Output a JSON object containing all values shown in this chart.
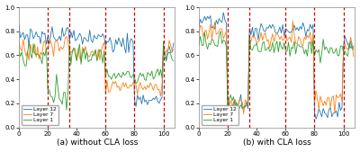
{
  "title_left": "(a) without CLA loss",
  "title_right": "(b) with CLA loss",
  "xlim": [
    0,
    108
  ],
  "ylim": [
    0.0,
    1.0
  ],
  "yticks": [
    0.0,
    0.2,
    0.4,
    0.6,
    0.8,
    1.0
  ],
  "xticks": [
    0,
    20,
    40,
    60,
    80,
    100
  ],
  "vlines_left": [
    20,
    35,
    60,
    80,
    100
  ],
  "vlines_right": [
    20,
    35,
    60,
    80,
    100
  ],
  "colors": {
    "layer12": "#1f77b4",
    "layer7": "#ff7f0e",
    "layer1": "#2ca02c"
  },
  "legend_labels": [
    "Layer 12",
    "Layer 7",
    "Layer 1"
  ],
  "vline_color": "#cc0000",
  "n_points": 108
}
